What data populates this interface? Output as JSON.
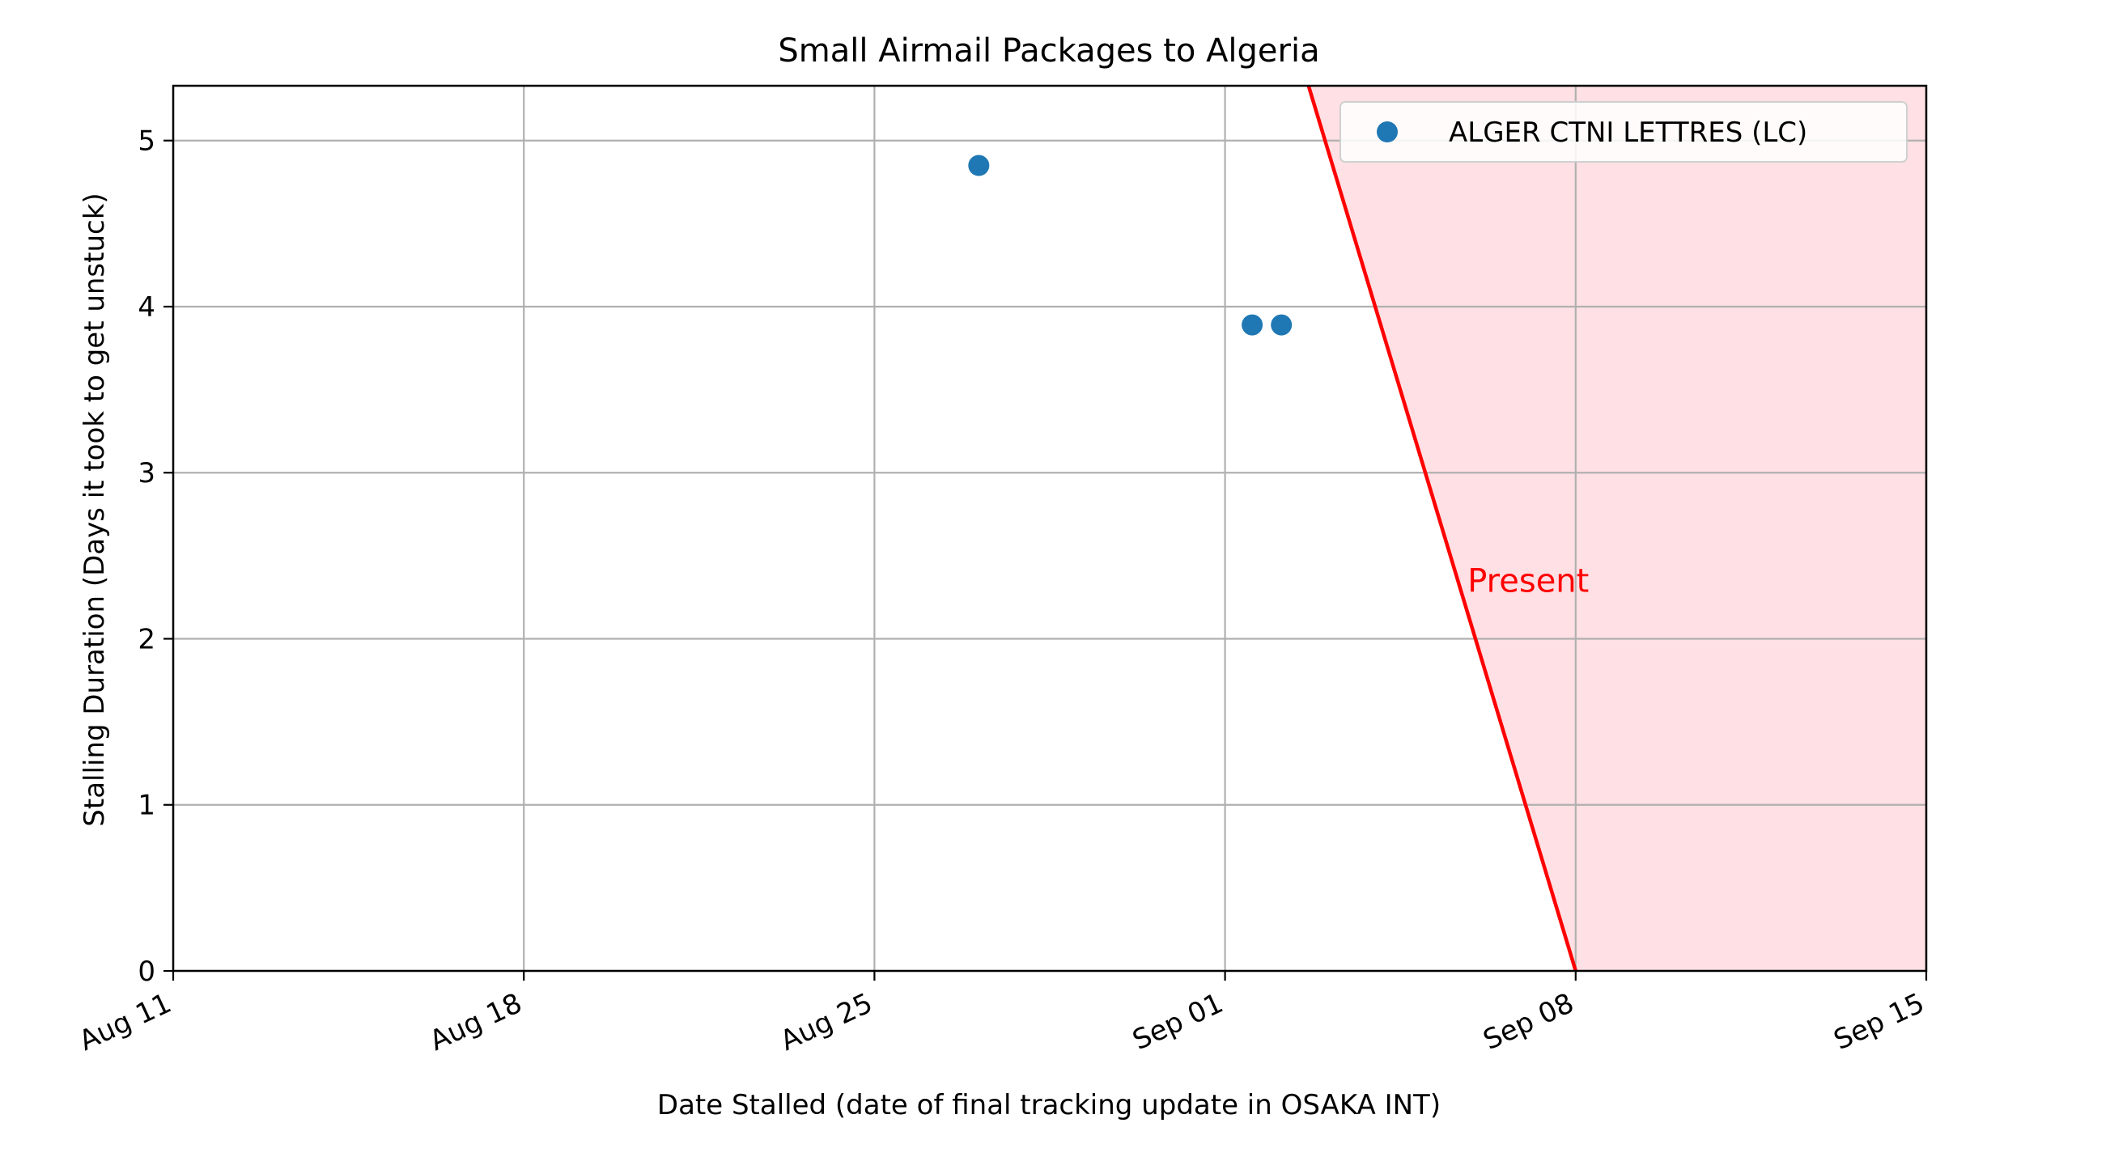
{
  "chart_data": {
    "type": "scatter",
    "title": "Small Airmail Packages to Algeria",
    "xlabel": "Date Stalled (date of final tracking update in OSAKA INT)",
    "ylabel": "Stalling Duration (Days it took to get unstuck)",
    "x_tick_labels": [
      "Aug 11",
      "Aug 18",
      "Aug 25",
      "Sep 01",
      "Sep 08",
      "Sep 15"
    ],
    "x_ticks": [
      "Aug 11",
      "Aug 18",
      "Aug 25",
      "Sep 01",
      "Sep 08",
      "Sep 15"
    ],
    "xlim": [
      "Aug 11",
      "Sep 15"
    ],
    "y_ticks": [
      0,
      1,
      2,
      3,
      4,
      5
    ],
    "ylim": [
      0,
      5.33
    ],
    "grid": true,
    "legend_position": "top-right",
    "series": [
      {
        "name": "ALGER CTNI LETTRES (LC)",
        "color": "#1f77b4",
        "points": [
          {
            "x": "Aug 27 02:00",
            "y": 4.85
          },
          {
            "x": "Sep 01 13:00",
            "y": 3.89
          },
          {
            "x": "Sep 02 03:00",
            "y": 3.89
          }
        ]
      }
    ],
    "present_line": {
      "label": "Present",
      "color": "#ff0000",
      "from": {
        "x": "Sep 08",
        "y": 0
      },
      "to": {
        "x": "Sep 02 16:00",
        "y": 5.33
      }
    },
    "shaded_region": {
      "from_line": "present_line",
      "to": "Sep 15",
      "color": "#ffe0e4"
    }
  }
}
